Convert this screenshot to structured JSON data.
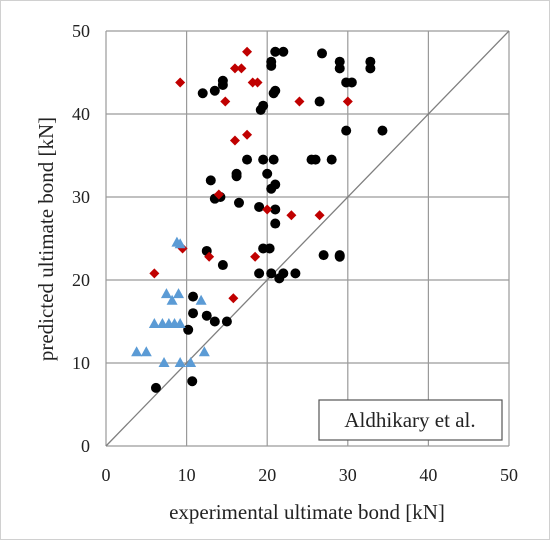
{
  "chart_data": {
    "type": "scatter",
    "title": "",
    "xlabel": "experimental ultimate bond [kN]",
    "ylabel": "predicted ultimate bond [kN]",
    "xlim": [
      0,
      50
    ],
    "ylim": [
      0,
      50
    ],
    "xticks": [
      "0",
      "10",
      "20",
      "30",
      "40",
      "50"
    ],
    "yticks": [
      "0",
      "10",
      "20",
      "30",
      "40",
      "50"
    ],
    "grid": true,
    "reference_line": "y = x",
    "annotation": "Aldhikary et al.",
    "annotation_position": "bottom-right",
    "series": [
      {
        "marker": "circle",
        "color": "#000000",
        "points": [
          [
            6.2,
            7.0
          ],
          [
            10.7,
            7.8
          ],
          [
            10.2,
            14.0
          ],
          [
            12.5,
            15.7
          ],
          [
            13.5,
            15.0
          ],
          [
            15.0,
            15.0
          ],
          [
            10.8,
            16.0
          ],
          [
            10.8,
            18.0
          ],
          [
            12.5,
            23.5
          ],
          [
            14.5,
            21.8
          ],
          [
            19.0,
            20.8
          ],
          [
            20.5,
            20.8
          ],
          [
            21.5,
            20.2
          ],
          [
            22.0,
            20.8
          ],
          [
            23.5,
            20.8
          ],
          [
            19.5,
            23.8
          ],
          [
            20.3,
            23.8
          ],
          [
            21.0,
            26.8
          ],
          [
            27.0,
            23.0
          ],
          [
            29.0,
            22.8
          ],
          [
            29.0,
            23.0
          ],
          [
            13.0,
            32.0
          ],
          [
            13.5,
            29.8
          ],
          [
            14.2,
            30.0
          ],
          [
            16.5,
            29.3
          ],
          [
            19.0,
            28.8
          ],
          [
            16.2,
            32.5
          ],
          [
            16.2,
            32.8
          ],
          [
            20.0,
            32.8
          ],
          [
            20.5,
            31.0
          ],
          [
            21.0,
            31.5
          ],
          [
            21.0,
            28.5
          ],
          [
            17.5,
            34.5
          ],
          [
            19.5,
            34.5
          ],
          [
            20.8,
            34.5
          ],
          [
            25.5,
            34.5
          ],
          [
            26.0,
            34.5
          ],
          [
            28.0,
            34.5
          ],
          [
            29.8,
            38.0
          ],
          [
            34.3,
            38.0
          ],
          [
            12.0,
            42.5
          ],
          [
            13.5,
            42.8
          ],
          [
            14.5,
            43.5
          ],
          [
            14.5,
            44.0
          ],
          [
            19.2,
            40.5
          ],
          [
            19.5,
            41.0
          ],
          [
            20.8,
            42.5
          ],
          [
            21.0,
            42.8
          ],
          [
            20.5,
            45.8
          ],
          [
            20.5,
            46.3
          ],
          [
            21.0,
            47.5
          ],
          [
            22.0,
            47.5
          ],
          [
            26.5,
            41.5
          ],
          [
            26.8,
            47.3
          ],
          [
            29.0,
            45.5
          ],
          [
            29.0,
            46.3
          ],
          [
            29.8,
            43.8
          ],
          [
            30.5,
            43.8
          ],
          [
            32.8,
            45.5
          ],
          [
            32.8,
            46.3
          ]
        ]
      },
      {
        "marker": "diamond",
        "color": "#c00000",
        "points": [
          [
            6.0,
            20.8
          ],
          [
            9.5,
            23.8
          ],
          [
            12.8,
            22.8
          ],
          [
            15.8,
            17.8
          ],
          [
            18.5,
            22.8
          ],
          [
            20.0,
            28.5
          ],
          [
            23.0,
            27.8
          ],
          [
            26.5,
            27.8
          ],
          [
            14.0,
            30.3
          ],
          [
            16.0,
            36.8
          ],
          [
            17.5,
            37.5
          ],
          [
            9.2,
            43.8
          ],
          [
            14.8,
            41.5
          ],
          [
            16.0,
            45.5
          ],
          [
            16.8,
            45.5
          ],
          [
            17.5,
            47.5
          ],
          [
            18.2,
            43.8
          ],
          [
            18.8,
            43.8
          ],
          [
            24.0,
            41.5
          ],
          [
            30.0,
            41.5
          ]
        ]
      },
      {
        "marker": "triangle",
        "color": "#5b9bd5",
        "points": [
          [
            3.8,
            11.3
          ],
          [
            5.0,
            11.3
          ],
          [
            7.2,
            10.0
          ],
          [
            9.2,
            10.0
          ],
          [
            10.5,
            10.0
          ],
          [
            12.2,
            11.3
          ],
          [
            6.0,
            14.7
          ],
          [
            7.0,
            14.7
          ],
          [
            7.8,
            14.7
          ],
          [
            8.5,
            14.7
          ],
          [
            9.2,
            14.7
          ],
          [
            7.5,
            18.3
          ],
          [
            8.2,
            17.5
          ],
          [
            9.0,
            18.3
          ],
          [
            11.8,
            17.5
          ],
          [
            8.8,
            24.5
          ],
          [
            9.2,
            24.3
          ]
        ]
      }
    ]
  }
}
